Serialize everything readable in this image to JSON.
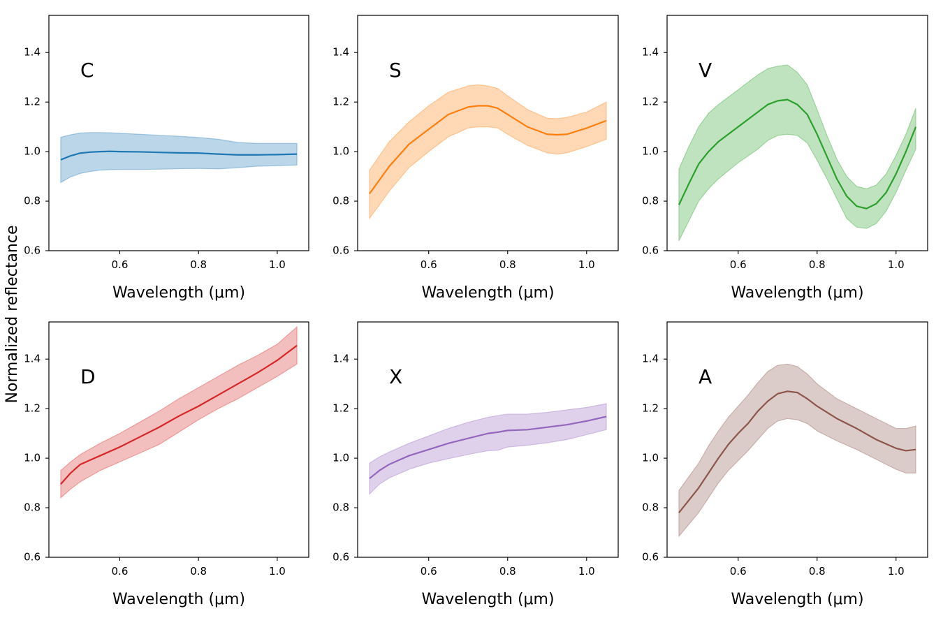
{
  "figure": {
    "ylabel": "Normalized reflectance"
  },
  "chart_data": [
    {
      "type": "line",
      "panel_label": "C",
      "xlabel": "Wavelength (μm)",
      "xlim": [
        0.42,
        1.08
      ],
      "ylim": [
        0.6,
        1.55
      ],
      "xticks": [
        0.6,
        0.8,
        1.0
      ],
      "xtick_labels": [
        "0.6",
        "0.8",
        "1.0"
      ],
      "yticks": [
        0.6,
        0.8,
        1.0,
        1.2,
        1.4
      ],
      "ytick_labels": [
        "0.6",
        "0.8",
        "1.0",
        "1.2",
        "1.4"
      ],
      "color": "#1f77b4",
      "x": [
        0.45,
        0.475,
        0.5,
        0.525,
        0.55,
        0.575,
        0.6,
        0.65,
        0.7,
        0.75,
        0.8,
        0.85,
        0.9,
        0.95,
        1.0,
        1.05
      ],
      "mean": [
        0.967,
        0.983,
        0.994,
        0.998,
        1.0,
        1.001,
        1.0,
        0.999,
        0.997,
        0.995,
        0.994,
        0.99,
        0.987,
        0.987,
        0.988,
        0.99
      ],
      "upper": [
        1.058,
        1.068,
        1.075,
        1.077,
        1.077,
        1.076,
        1.074,
        1.07,
        1.066,
        1.062,
        1.057,
        1.05,
        1.037,
        1.033,
        1.033,
        1.033
      ],
      "lower": [
        0.875,
        0.898,
        0.912,
        0.92,
        0.925,
        0.927,
        0.928,
        0.928,
        0.929,
        0.931,
        0.932,
        0.93,
        0.935,
        0.941,
        0.943,
        0.946
      ]
    },
    {
      "type": "line",
      "panel_label": "S",
      "xlabel": "Wavelength (μm)",
      "xlim": [
        0.42,
        1.08
      ],
      "ylim": [
        0.6,
        1.55
      ],
      "xticks": [
        0.6,
        0.8,
        1.0
      ],
      "xtick_labels": [
        "0.6",
        "0.8",
        "1.0"
      ],
      "yticks": [
        0.6,
        0.8,
        1.0,
        1.2,
        1.4
      ],
      "ytick_labels": [
        "0.6",
        "0.8",
        "1.0",
        "1.2",
        "1.4"
      ],
      "color": "#ff7f0e",
      "x": [
        0.45,
        0.5,
        0.55,
        0.6,
        0.65,
        0.7,
        0.725,
        0.75,
        0.775,
        0.8,
        0.85,
        0.9,
        0.925,
        0.95,
        1.0,
        1.05
      ],
      "mean": [
        0.83,
        0.94,
        1.03,
        1.09,
        1.15,
        1.18,
        1.185,
        1.185,
        1.175,
        1.15,
        1.1,
        1.07,
        1.068,
        1.07,
        1.095,
        1.125
      ],
      "upper": [
        0.925,
        1.04,
        1.12,
        1.185,
        1.24,
        1.265,
        1.27,
        1.265,
        1.255,
        1.225,
        1.17,
        1.135,
        1.133,
        1.138,
        1.16,
        1.2
      ],
      "lower": [
        0.73,
        0.84,
        0.935,
        1.0,
        1.06,
        1.095,
        1.1,
        1.1,
        1.095,
        1.07,
        1.025,
        0.995,
        0.99,
        0.995,
        1.02,
        1.05
      ]
    },
    {
      "type": "line",
      "panel_label": "V",
      "xlabel": "Wavelength (μm)",
      "xlim": [
        0.42,
        1.08
      ],
      "ylim": [
        0.6,
        1.55
      ],
      "xticks": [
        0.6,
        0.8,
        1.0
      ],
      "xtick_labels": [
        "0.6",
        "0.8",
        "1.0"
      ],
      "yticks": [
        0.6,
        0.8,
        1.0,
        1.2,
        1.4
      ],
      "ytick_labels": [
        "0.6",
        "0.8",
        "1.0",
        "1.2",
        "1.4"
      ],
      "color": "#2ca02c",
      "x": [
        0.45,
        0.475,
        0.5,
        0.525,
        0.55,
        0.6,
        0.65,
        0.675,
        0.7,
        0.725,
        0.75,
        0.775,
        0.8,
        0.825,
        0.85,
        0.875,
        0.9,
        0.925,
        0.95,
        0.975,
        1.0,
        1.025,
        1.05
      ],
      "mean": [
        0.785,
        0.87,
        0.95,
        1.0,
        1.04,
        1.1,
        1.16,
        1.19,
        1.205,
        1.21,
        1.19,
        1.15,
        1.07,
        0.98,
        0.89,
        0.82,
        0.78,
        0.77,
        0.79,
        0.835,
        0.91,
        1.0,
        1.1
      ],
      "upper": [
        0.93,
        1.02,
        1.1,
        1.155,
        1.19,
        1.25,
        1.31,
        1.335,
        1.345,
        1.35,
        1.32,
        1.27,
        1.17,
        1.065,
        0.97,
        0.9,
        0.86,
        0.85,
        0.865,
        0.91,
        0.985,
        1.07,
        1.175
      ],
      "lower": [
        0.64,
        0.72,
        0.8,
        0.85,
        0.89,
        0.955,
        1.01,
        1.045,
        1.065,
        1.07,
        1.065,
        1.035,
        0.965,
        0.89,
        0.81,
        0.73,
        0.695,
        0.69,
        0.71,
        0.76,
        0.835,
        0.925,
        1.01
      ]
    },
    {
      "type": "line",
      "panel_label": "D",
      "xlabel": "Wavelength (μm)",
      "xlim": [
        0.42,
        1.08
      ],
      "ylim": [
        0.6,
        1.55
      ],
      "xticks": [
        0.6,
        0.8,
        1.0
      ],
      "xtick_labels": [
        "0.6",
        "0.8",
        "1.0"
      ],
      "yticks": [
        0.6,
        0.8,
        1.0,
        1.2,
        1.4
      ],
      "ytick_labels": [
        "0.6",
        "0.8",
        "1.0",
        "1.2",
        "1.4"
      ],
      "color": "#d62728",
      "x": [
        0.45,
        0.475,
        0.5,
        0.55,
        0.6,
        0.65,
        0.7,
        0.75,
        0.8,
        0.85,
        0.9,
        0.95,
        1.0,
        1.05
      ],
      "mean": [
        0.895,
        0.94,
        0.975,
        1.01,
        1.045,
        1.085,
        1.125,
        1.17,
        1.21,
        1.255,
        1.3,
        1.345,
        1.395,
        1.455
      ],
      "upper": [
        0.95,
        0.985,
        1.015,
        1.06,
        1.1,
        1.145,
        1.19,
        1.24,
        1.285,
        1.33,
        1.375,
        1.415,
        1.46,
        1.53
      ],
      "lower": [
        0.84,
        0.875,
        0.905,
        0.95,
        0.985,
        1.02,
        1.055,
        1.105,
        1.155,
        1.2,
        1.24,
        1.285,
        1.33,
        1.38
      ]
    },
    {
      "type": "line",
      "panel_label": "X",
      "xlabel": "Wavelength (μm)",
      "xlim": [
        0.42,
        1.08
      ],
      "ylim": [
        0.6,
        1.55
      ],
      "xticks": [
        0.6,
        0.8,
        1.0
      ],
      "xtick_labels": [
        "0.6",
        "0.8",
        "1.0"
      ],
      "yticks": [
        0.6,
        0.8,
        1.0,
        1.2,
        1.4
      ],
      "ytick_labels": [
        "0.6",
        "0.8",
        "1.0",
        "1.2",
        "1.4"
      ],
      "color": "#9467bd",
      "x": [
        0.45,
        0.475,
        0.5,
        0.55,
        0.6,
        0.65,
        0.7,
        0.75,
        0.775,
        0.8,
        0.85,
        0.9,
        0.95,
        1.0,
        1.05
      ],
      "mean": [
        0.918,
        0.95,
        0.975,
        1.01,
        1.035,
        1.06,
        1.08,
        1.1,
        1.105,
        1.112,
        1.115,
        1.125,
        1.135,
        1.15,
        1.168
      ],
      "upper": [
        0.98,
        1.005,
        1.025,
        1.06,
        1.09,
        1.12,
        1.145,
        1.165,
        1.172,
        1.178,
        1.178,
        1.185,
        1.195,
        1.205,
        1.22
      ],
      "lower": [
        0.855,
        0.895,
        0.92,
        0.955,
        0.98,
        0.998,
        1.015,
        1.03,
        1.032,
        1.045,
        1.052,
        1.062,
        1.075,
        1.095,
        1.115
      ]
    },
    {
      "type": "line",
      "panel_label": "A",
      "xlabel": "Wavelength (μm)",
      "xlim": [
        0.42,
        1.08
      ],
      "ylim": [
        0.6,
        1.55
      ],
      "xticks": [
        0.6,
        0.8,
        1.0
      ],
      "xtick_labels": [
        "0.6",
        "0.8",
        "1.0"
      ],
      "yticks": [
        0.6,
        0.8,
        1.0,
        1.2,
        1.4
      ],
      "ytick_labels": [
        "0.6",
        "0.8",
        "1.0",
        "1.2",
        "1.4"
      ],
      "color": "#8c564b",
      "x": [
        0.45,
        0.5,
        0.525,
        0.55,
        0.575,
        0.6,
        0.625,
        0.65,
        0.675,
        0.7,
        0.725,
        0.75,
        0.775,
        0.8,
        0.85,
        0.9,
        0.95,
        1.0,
        1.025,
        1.05
      ],
      "mean": [
        0.78,
        0.88,
        0.94,
        1.0,
        1.055,
        1.1,
        1.14,
        1.19,
        1.23,
        1.26,
        1.27,
        1.265,
        1.24,
        1.21,
        1.16,
        1.12,
        1.075,
        1.04,
        1.03,
        1.035
      ],
      "upper": [
        0.87,
        0.98,
        1.05,
        1.11,
        1.165,
        1.21,
        1.255,
        1.305,
        1.35,
        1.375,
        1.38,
        1.37,
        1.34,
        1.3,
        1.24,
        1.2,
        1.16,
        1.12,
        1.12,
        1.13
      ],
      "lower": [
        0.685,
        0.78,
        0.84,
        0.9,
        0.95,
        0.99,
        1.03,
        1.075,
        1.12,
        1.15,
        1.16,
        1.155,
        1.14,
        1.11,
        1.07,
        1.035,
        0.995,
        0.955,
        0.94,
        0.94
      ]
    }
  ]
}
